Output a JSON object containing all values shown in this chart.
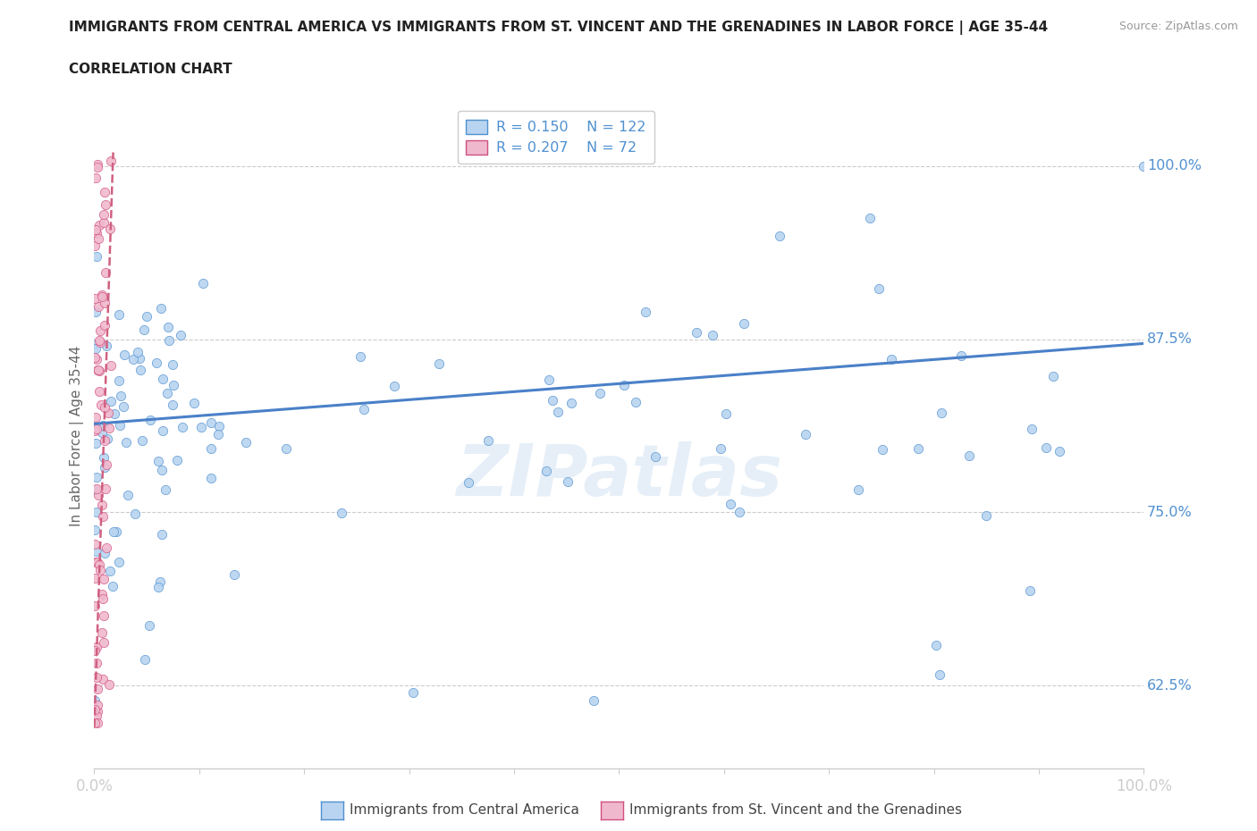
{
  "title_line1": "IMMIGRANTS FROM CENTRAL AMERICA VS IMMIGRANTS FROM ST. VINCENT AND THE GRENADINES IN LABOR FORCE | AGE 35-44",
  "title_line2": "CORRELATION CHART",
  "source_text": "Source: ZipAtlas.com",
  "ylabel": "In Labor Force | Age 35-44",
  "xlim": [
    0.0,
    1.0
  ],
  "ylim": [
    0.565,
    1.045
  ],
  "ytick_values": [
    0.625,
    0.75,
    0.875,
    1.0
  ],
  "ytick_labels": [
    "62.5%",
    "75.0%",
    "87.5%",
    "100.0%"
  ],
  "xtick_values": [
    0.0,
    1.0
  ],
  "xtick_labels": [
    "0.0%",
    "100.0%"
  ],
  "legend_R1": "R = 0.150",
  "legend_N1": "N = 122",
  "legend_R2": "R = 0.207",
  "legend_N2": "N = 72",
  "color_blue_fill": "#b8d4f0",
  "color_blue_edge": "#5090d0",
  "color_pink_fill": "#f0b8cc",
  "color_pink_edge": "#d05080",
  "color_line_blue": "#4a80c8",
  "color_line_pink": "#d06080",
  "color_text_blue": "#5090d0",
  "color_grid": "#cccccc",
  "color_axis": "#cccccc",
  "color_text_title": "#222222",
  "watermark": "ZIPatlas",
  "bg_color": "#ffffff",
  "trend_blue_x0": 0.0,
  "trend_blue_y0": 0.814,
  "trend_blue_x1": 1.0,
  "trend_blue_y1": 0.872,
  "trend_pink_x0": 0.0,
  "trend_pink_y0": 0.595,
  "trend_pink_x1": 0.018,
  "trend_pink_y1": 1.01
}
